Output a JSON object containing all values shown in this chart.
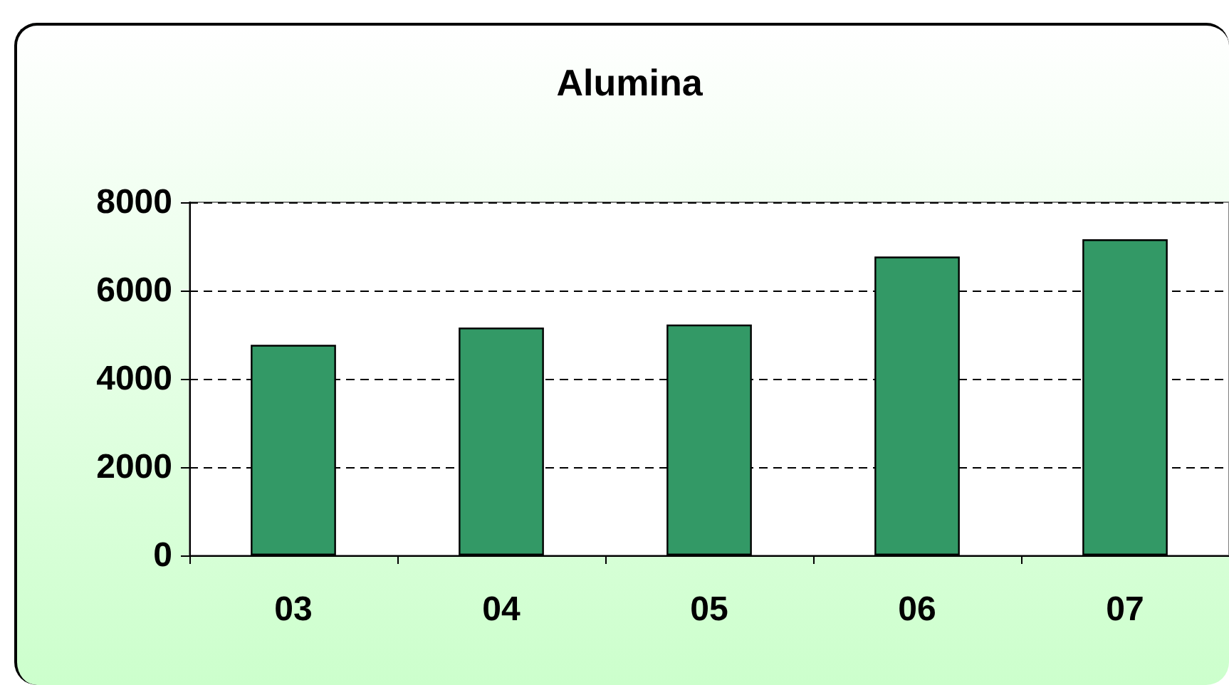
{
  "chart_data": {
    "type": "bar",
    "title": "Alumina",
    "categories": [
      "03",
      "04",
      "05",
      "06",
      "07"
    ],
    "values": [
      4770,
      5160,
      5230,
      6770,
      7160
    ],
    "color": "#339966",
    "ylim": [
      0,
      8000
    ],
    "yticks": [
      0,
      2000,
      4000,
      6000,
      8000
    ],
    "grid": "y"
  }
}
